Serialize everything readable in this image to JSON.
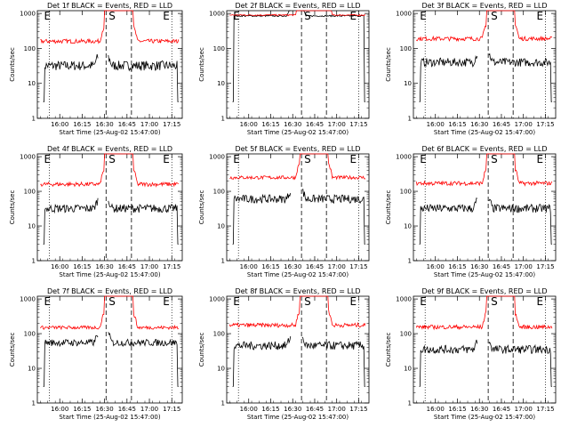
{
  "chart_data": [
    {
      "type": "line",
      "title": "Det 1f BLACK = Events, RED = LLD",
      "ylabel": "Counts/sec",
      "xlabel": "Start Time (25-Aug-02 15:47:00)",
      "x_ticks": [
        "16:00",
        "16:15",
        "16:30",
        "16:45",
        "17:00",
        "17:15"
      ],
      "y_ticks": [
        "1",
        "10",
        "100",
        "1000"
      ],
      "markers": [
        "E",
        "S",
        "E"
      ],
      "yscale": "log",
      "ylim": [
        1,
        1200
      ],
      "xlim_min": [
        -2,
        95
      ],
      "series": [
        {
          "color": "#000000",
          "level": 32,
          "noise": 0.14,
          "gaps": [
            [
              39,
              45
            ]
          ]
        },
        {
          "color": "#ff0000",
          "level": 160,
          "noise": 0.06,
          "gaps": []
        }
      ]
    },
    {
      "type": "line",
      "title": "Det 2f BLACK = Events, RED = LLD",
      "ylabel": "Counts/sec",
      "xlabel": "Start Time (25-Aug-02 15:47:00)",
      "x_ticks": [
        "16:00",
        "16:15",
        "16:30",
        "16:45",
        "17:00",
        "17:15"
      ],
      "y_ticks": [
        "1",
        "10",
        "100",
        "1000"
      ],
      "markers": [
        "E",
        "S",
        "E"
      ],
      "yscale": "log",
      "ylim": [
        1,
        1200
      ],
      "xlim_min": [
        -2,
        95
      ],
      "series": [
        {
          "color": "#000000",
          "level": 850,
          "noise": 0.02,
          "gaps": [
            [
              42,
              49
            ]
          ]
        },
        {
          "color": "#ff0000",
          "level": 900,
          "noise": 0.02,
          "gaps": []
        }
      ]
    },
    {
      "type": "line",
      "title": "Det 3f BLACK = Events, RED = LLD",
      "ylabel": "Counts/sec",
      "xlabel": "Start Time (25-Aug-02 15:47:00)",
      "x_ticks": [
        "16:00",
        "16:15",
        "16:30",
        "16:45",
        "17:00",
        "17:15"
      ],
      "y_ticks": [
        "1",
        "10",
        "100",
        "1000"
      ],
      "markers": [
        "E",
        "S",
        "E"
      ],
      "yscale": "log",
      "ylim": [
        1,
        1200
      ],
      "xlim_min": [
        -2,
        95
      ],
      "series": [
        {
          "color": "#000000",
          "level": 40,
          "noise": 0.12,
          "gaps": [
            [
              42,
              49
            ]
          ]
        },
        {
          "color": "#ff0000",
          "level": 190,
          "noise": 0.06,
          "gaps": []
        }
      ]
    },
    {
      "type": "line",
      "title": "Det 4f BLACK = Events, RED = LLD",
      "ylabel": "Counts/sec",
      "xlabel": "Start Time (25-Aug-02 15:47:00)",
      "x_ticks": [
        "16:00",
        "16:15",
        "16:30",
        "16:45",
        "17:00",
        "17:15"
      ],
      "y_ticks": [
        "1",
        "10",
        "100",
        "1000"
      ],
      "markers": [
        "E",
        "S",
        "E"
      ],
      "yscale": "log",
      "ylim": [
        1,
        1200
      ],
      "xlim_min": [
        -2,
        95
      ],
      "series": [
        {
          "color": "#000000",
          "level": 32,
          "noise": 0.12,
          "gaps": [
            [
              39,
              45
            ]
          ]
        },
        {
          "color": "#ff0000",
          "level": 160,
          "noise": 0.06,
          "gaps": []
        }
      ]
    },
    {
      "type": "line",
      "title": "Det 5f BLACK = Events, RED = LLD",
      "ylabel": "Counts/sec",
      "xlabel": "Start Time (25-Aug-02 15:47:00)",
      "x_ticks": [
        "16:00",
        "16:15",
        "16:30",
        "16:45",
        "17:00",
        "17:15"
      ],
      "y_ticks": [
        "1",
        "10",
        "100",
        "1000"
      ],
      "markers": [
        "E",
        "S",
        "E"
      ],
      "yscale": "log",
      "ylim": [
        1,
        1200
      ],
      "xlim_min": [
        -2,
        95
      ],
      "series": [
        {
          "color": "#000000",
          "level": 60,
          "noise": 0.12,
          "gaps": [
            [
              42,
              49
            ]
          ]
        },
        {
          "color": "#ff0000",
          "level": 250,
          "noise": 0.05,
          "gaps": []
        }
      ]
    },
    {
      "type": "line",
      "title": "Det 6f BLACK = Events, RED = LLD",
      "ylabel": "Counts/sec",
      "xlabel": "Start Time (25-Aug-02 15:47:00)",
      "x_ticks": [
        "16:00",
        "16:15",
        "16:30",
        "16:45",
        "17:00",
        "17:15"
      ],
      "y_ticks": [
        "1",
        "10",
        "100",
        "1000"
      ],
      "markers": [
        "E",
        "S",
        "E"
      ],
      "yscale": "log",
      "ylim": [
        1,
        1200
      ],
      "xlim_min": [
        -2,
        95
      ],
      "series": [
        {
          "color": "#000000",
          "level": 32,
          "noise": 0.12,
          "gaps": [
            [
              42,
              49
            ]
          ]
        },
        {
          "color": "#ff0000",
          "level": 170,
          "noise": 0.06,
          "gaps": []
        }
      ]
    },
    {
      "type": "line",
      "title": "Det 7f BLACK = Events, RED = LLD",
      "ylabel": "Counts/sec",
      "xlabel": "Start Time (25-Aug-02 15:47:00)",
      "x_ticks": [
        "16:00",
        "16:15",
        "16:30",
        "16:45",
        "17:00",
        "17:15"
      ],
      "y_ticks": [
        "1",
        "10",
        "100",
        "1000"
      ],
      "markers": [
        "E",
        "S",
        "E"
      ],
      "yscale": "log",
      "ylim": [
        1,
        1200
      ],
      "xlim_min": [
        -2,
        95
      ],
      "series": [
        {
          "color": "#000000",
          "level": 55,
          "noise": 0.1,
          "gaps": [
            [
              39,
              45
            ]
          ]
        },
        {
          "color": "#ff0000",
          "level": 150,
          "noise": 0.05,
          "gaps": []
        }
      ]
    },
    {
      "type": "line",
      "title": "Det 8f BLACK = Events, RED = LLD",
      "ylabel": "Counts/sec",
      "xlabel": "Start Time (25-Aug-02 15:47:00)",
      "x_ticks": [
        "16:00",
        "16:15",
        "16:30",
        "16:45",
        "17:00",
        "17:15"
      ],
      "y_ticks": [
        "1",
        "10",
        "100",
        "1000"
      ],
      "markers": [
        "E",
        "S",
        "E"
      ],
      "yscale": "log",
      "ylim": [
        1,
        1200
      ],
      "xlim_min": [
        -2,
        95
      ],
      "series": [
        {
          "color": "#000000",
          "level": 45,
          "noise": 0.12,
          "gaps": [
            [
              42,
              49
            ]
          ]
        },
        {
          "color": "#ff0000",
          "level": 175,
          "noise": 0.06,
          "gaps": []
        }
      ]
    },
    {
      "type": "line",
      "title": "Det 9f BLACK = Events, RED = LLD",
      "ylabel": "Counts/sec",
      "xlabel": "Start Time (25-Aug-02 15:47:00)",
      "x_ticks": [
        "16:00",
        "16:15",
        "16:30",
        "16:45",
        "17:00",
        "17:15"
      ],
      "y_ticks": [
        "1",
        "10",
        "100",
        "1000"
      ],
      "markers": [
        "E",
        "S",
        "E"
      ],
      "yscale": "log",
      "ylim": [
        1,
        1200
      ],
      "xlim_min": [
        -2,
        95
      ],
      "series": [
        {
          "color": "#000000",
          "level": 35,
          "noise": 0.12,
          "gaps": [
            [
              42,
              49
            ]
          ]
        },
        {
          "color": "#ff0000",
          "level": 155,
          "noise": 0.06,
          "gaps": []
        }
      ]
    }
  ]
}
